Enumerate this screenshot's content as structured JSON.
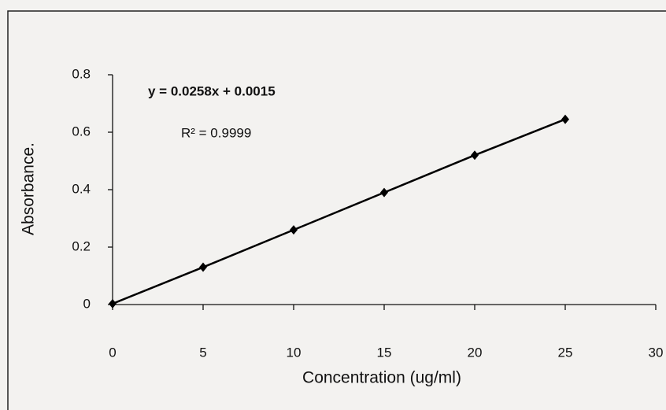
{
  "chart_data": {
    "type": "scatter",
    "x_label": "Concentration (ug/ml)",
    "y_label": "Absorbance.",
    "annotations": [
      "y = 0.0258x + 0.0015",
      "R² = 0.9999"
    ],
    "series": [
      {
        "color": "#000000",
        "x": [
          0,
          5,
          10,
          15,
          20,
          25
        ],
        "values": [
          0.003,
          0.13,
          0.26,
          0.39,
          0.52,
          0.645
        ]
      }
    ],
    "xlim": [
      0,
      30
    ],
    "xticks": [
      0,
      5,
      10,
      15,
      20,
      25,
      30
    ],
    "ylim": [
      0,
      0.8
    ],
    "yticks": [
      0,
      0.2,
      0.4,
      0.6,
      0.8
    ]
  }
}
